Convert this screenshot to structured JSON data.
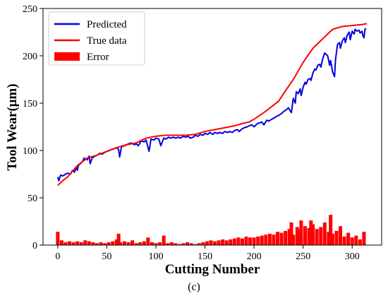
{
  "caption": "(c)",
  "colors": {
    "predicted": "#0000dd",
    "true_data": "#ff0000",
    "error": "#ff0000"
  },
  "chart_data": {
    "type": "line",
    "title": "",
    "xlabel": "Cutting Number",
    "ylabel": "Tool Wear(μm)",
    "xlim": [
      -15,
      330
    ],
    "ylim": [
      0,
      250
    ],
    "xticks": [
      0,
      50,
      100,
      150,
      200,
      250,
      300
    ],
    "yticks": [
      0,
      50,
      100,
      150,
      200,
      250
    ],
    "grid": false,
    "legend_position": "top-left",
    "series": [
      {
        "name": "Predicted",
        "kind": "line",
        "x": [
          0,
          1,
          3,
          5,
          8,
          10,
          13,
          15,
          17,
          19,
          20,
          21,
          23,
          25,
          27,
          28,
          30,
          32,
          33,
          35,
          38,
          40,
          43,
          45,
          48,
          50,
          53,
          55,
          58,
          60,
          62,
          63,
          65,
          68,
          70,
          72,
          75,
          78,
          80,
          82,
          85,
          88,
          90,
          93,
          95,
          98,
          100,
          103,
          105,
          108,
          110,
          113,
          115,
          118,
          120,
          123,
          125,
          128,
          130,
          133,
          135,
          138,
          140,
          143,
          145,
          148,
          150,
          153,
          155,
          158,
          160,
          163,
          165,
          168,
          170,
          173,
          175,
          178,
          180,
          183,
          185,
          188,
          190,
          193,
          195,
          198,
          200,
          203,
          205,
          208,
          210,
          213,
          215,
          218,
          220,
          223,
          225,
          228,
          230,
          233,
          235,
          238,
          240,
          242,
          243,
          245,
          247,
          248,
          250,
          252,
          253,
          255,
          257,
          258,
          260,
          262,
          263,
          265,
          267,
          268,
          270,
          272,
          273,
          275,
          277,
          278,
          280,
          282,
          283,
          285,
          287,
          288,
          290,
          292,
          293,
          295,
          297,
          298,
          300,
          302,
          303,
          305,
          307,
          308,
          310,
          311,
          312,
          313,
          314
        ],
        "values": [
          72,
          68,
          74,
          73,
          75,
          76,
          75,
          79,
          77,
          82,
          79,
          84,
          86,
          88,
          92,
          91,
          90,
          94,
          86,
          92,
          94,
          95,
          97,
          96,
          98,
          99,
          100,
          101,
          102,
          103,
          101,
          93,
          104,
          105,
          106,
          107,
          108,
          106,
          107,
          105,
          110,
          109,
          111,
          99,
          112,
          111,
          113,
          112,
          105,
          113,
          112,
          114,
          113,
          114,
          113,
          114,
          113,
          115,
          114,
          115,
          113,
          114,
          116,
          115,
          117,
          116,
          118,
          117,
          119,
          117,
          119,
          118,
          119,
          118,
          120,
          119,
          120,
          119,
          121,
          122,
          120,
          123,
          124,
          125,
          126,
          127,
          125,
          128,
          129,
          130,
          127,
          132,
          131,
          133,
          134,
          136,
          137,
          139,
          141,
          143,
          145,
          140,
          155,
          150,
          162,
          160,
          165,
          158,
          167,
          172,
          170,
          175,
          176,
          174,
          182,
          186,
          185,
          190,
          191,
          188,
          197,
          203,
          202,
          200,
          190,
          195,
          183,
          178,
          196,
          212,
          214,
          208,
          216,
          219,
          214,
          222,
          225,
          217,
          226,
          223,
          228,
          226,
          227,
          224,
          226,
          221,
          219,
          228,
          229
        ]
      },
      {
        "name": "True data",
        "kind": "line",
        "x": [
          0,
          5,
          10,
          15,
          20,
          25,
          30,
          40,
          50,
          60,
          70,
          80,
          90,
          100,
          110,
          120,
          130,
          140,
          150,
          160,
          170,
          180,
          190,
          195,
          200,
          210,
          220,
          225,
          230,
          240,
          250,
          260,
          270,
          280,
          290,
          300,
          310,
          315
        ],
        "values": [
          63,
          68,
          72,
          78,
          84,
          88,
          92,
          95,
          99,
          103,
          106,
          108,
          113,
          115,
          116,
          116,
          116,
          117,
          120,
          122,
          124,
          126,
          129,
          130,
          133,
          140,
          148,
          152,
          160,
          175,
          193,
          208,
          218,
          228,
          231,
          232,
          233,
          234
        ]
      },
      {
        "name": "Error",
        "kind": "bar",
        "x": [
          0,
          4,
          8,
          12,
          16,
          20,
          24,
          28,
          32,
          36,
          40,
          44,
          48,
          52,
          56,
          60,
          62,
          64,
          68,
          72,
          76,
          80,
          84,
          88,
          92,
          96,
          100,
          104,
          108,
          112,
          116,
          120,
          124,
          128,
          132,
          136,
          140,
          144,
          148,
          152,
          156,
          160,
          164,
          168,
          172,
          176,
          180,
          184,
          188,
          192,
          196,
          200,
          204,
          208,
          212,
          216,
          220,
          224,
          228,
          232,
          236,
          238,
          240,
          244,
          246,
          248,
          252,
          256,
          258,
          260,
          264,
          268,
          272,
          276,
          278,
          280,
          284,
          288,
          292,
          296,
          300,
          304,
          308,
          312
        ],
        "values": [
          14,
          5,
          3,
          4,
          3,
          4,
          3,
          5,
          4,
          3,
          2,
          3,
          2,
          3,
          4,
          6,
          12,
          3,
          4,
          3,
          5,
          2,
          3,
          4,
          8,
          3,
          2,
          3,
          10,
          2,
          3,
          2,
          1,
          2,
          3,
          2,
          1,
          2,
          3,
          4,
          5,
          4,
          5,
          6,
          5,
          6,
          7,
          8,
          7,
          9,
          8,
          8,
          9,
          10,
          11,
          12,
          11,
          14,
          13,
          15,
          17,
          24,
          11,
          19,
          16,
          26,
          20,
          18,
          26,
          22,
          17,
          19,
          24,
          14,
          32,
          12,
          15,
          20,
          9,
          13,
          8,
          10,
          6,
          14
        ]
      }
    ]
  }
}
